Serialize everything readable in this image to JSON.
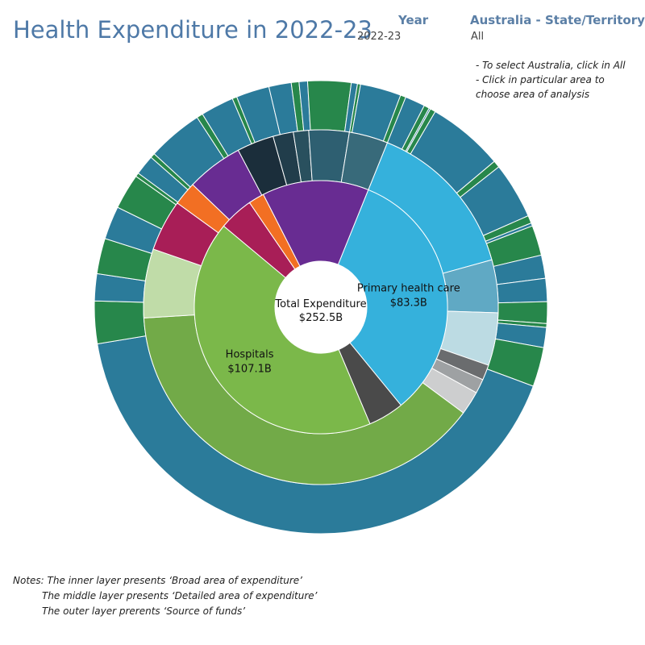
{
  "header": {
    "title": "Health Expenditure in 2022-23",
    "year_label": "Year",
    "year_value": "2022-23",
    "region_label": "Australia - State/Territory",
    "region_value": "All"
  },
  "hints": [
    "- To select Australia, click in All",
    "- Click in particular area to",
    "choose area of analysis"
  ],
  "notes": [
    "Notes: The inner layer presents ‘Broad area of expenditure’",
    "The middle layer presents ‘Detailed area of expenditure’",
    "The outer layer prerents ‘Source of funds’"
  ],
  "chart_data": {
    "type": "sunburst",
    "units": "$B",
    "center": {
      "title": "Total Expenditure",
      "value": "$252.5B"
    },
    "inner": [
      {
        "name": "Primary health care",
        "value": 83.3,
        "value_label": "$83.3B",
        "color": "#35b1dc",
        "labelled": true
      },
      {
        "name": "",
        "value": 11.5,
        "color": "#4a4a4a"
      },
      {
        "name": "Hospitals",
        "value": 107.1,
        "value_label": "$107.1B",
        "color": "#7bb84a",
        "labelled": true
      },
      {
        "name": "",
        "value": 11.1,
        "color": "#a81e57"
      },
      {
        "name": "",
        "value": 5.1,
        "color": "#f26f23"
      },
      {
        "name": "",
        "value": 34.4,
        "color": "#682c92"
      }
    ],
    "middle": [
      {
        "value": 34.6,
        "color": "#35b1dc"
      },
      {
        "value": 11.4,
        "color": "#60a9c4"
      },
      {
        "value": 11.4,
        "color": "#bcdbe3"
      },
      {
        "value": 3.3,
        "color": "#6a6c6e"
      },
      {
        "value": 3.1,
        "color": "#9ea1a3"
      },
      {
        "value": 5.1,
        "color": "#cdcecf"
      },
      {
        "value": 92.2,
        "color": "#72aa48"
      },
      {
        "value": 14.9,
        "color": "#c0dca8"
      },
      {
        "value": 11.1,
        "color": "#a81e57"
      },
      {
        "value": 5.1,
        "color": "#f26f23"
      },
      {
        "value": 12.2,
        "color": "#682c92"
      },
      {
        "value": 8.0,
        "color": "#1b2e3b"
      },
      {
        "value": 4.4,
        "color": "#213d4b"
      },
      {
        "value": 3.3,
        "color": "#29505e"
      },
      {
        "value": 8.7,
        "color": "#2e5f71"
      },
      {
        "value": 8.4,
        "color": "#386a7a"
      }
    ],
    "outer": [
      {
        "value": 2.6,
        "color": "#2b7b9a"
      },
      {
        "value": 0.7,
        "color": "#27874b"
      },
      {
        "value": 0.2,
        "color": "#2b7b9a"
      },
      {
        "value": 0.7,
        "color": "#27874b"
      },
      {
        "value": 9.9,
        "color": "#2b7b9a"
      },
      {
        "value": 0.9,
        "color": "#27874b"
      },
      {
        "value": 7.3,
        "color": "#2b7b9a"
      },
      {
        "value": 1.0,
        "color": "#27874b"
      },
      {
        "value": 0.4,
        "color": "#2b7b9a"
      },
      {
        "value": 3.9,
        "color": "#27874b"
      },
      {
        "value": 3.0,
        "color": "#2b7b9a"
      },
      {
        "value": 3.0,
        "color": "#2b7b9a"
      },
      {
        "value": 2.8,
        "color": "#27874b"
      },
      {
        "value": 0.5,
        "color": "#27874b"
      },
      {
        "value": 2.6,
        "color": "#2b7b9a"
      },
      {
        "value": 5.1,
        "color": "#27874b"
      },
      {
        "value": 75.8,
        "color": "#2b7b9a"
      },
      {
        "value": 5.5,
        "color": "#27874b"
      },
      {
        "value": 3.5,
        "color": "#2b7b9a"
      },
      {
        "value": 4.6,
        "color": "#27874b"
      },
      {
        "value": 4.3,
        "color": "#2b7b9a"
      },
      {
        "value": 4.6,
        "color": "#27874b"
      },
      {
        "value": 0.5,
        "color": "#27874b"
      },
      {
        "value": 2.6,
        "color": "#2b7b9a"
      },
      {
        "value": 0.6,
        "color": "#27874b"
      },
      {
        "value": 7.2,
        "color": "#2b7b9a"
      },
      {
        "value": 0.8,
        "color": "#27874b"
      },
      {
        "value": 4.3,
        "color": "#2b7b9a"
      },
      {
        "value": 0.6,
        "color": "#27874b"
      },
      {
        "value": 4.3,
        "color": "#2b7b9a"
      },
      {
        "value": 2.9,
        "color": "#2b7b9a"
      },
      {
        "value": 1.0,
        "color": "#27874b"
      },
      {
        "value": 1.1,
        "color": "#2b7b9a"
      },
      {
        "value": 5.6,
        "color": "#27874b"
      },
      {
        "value": 0.8,
        "color": "#2b7b9a"
      },
      {
        "value": 0.4,
        "color": "#27874b"
      },
      {
        "value": 5.3,
        "color": "#2b7b9a"
      },
      {
        "value": 0.7,
        "color": "#27874b"
      }
    ]
  }
}
